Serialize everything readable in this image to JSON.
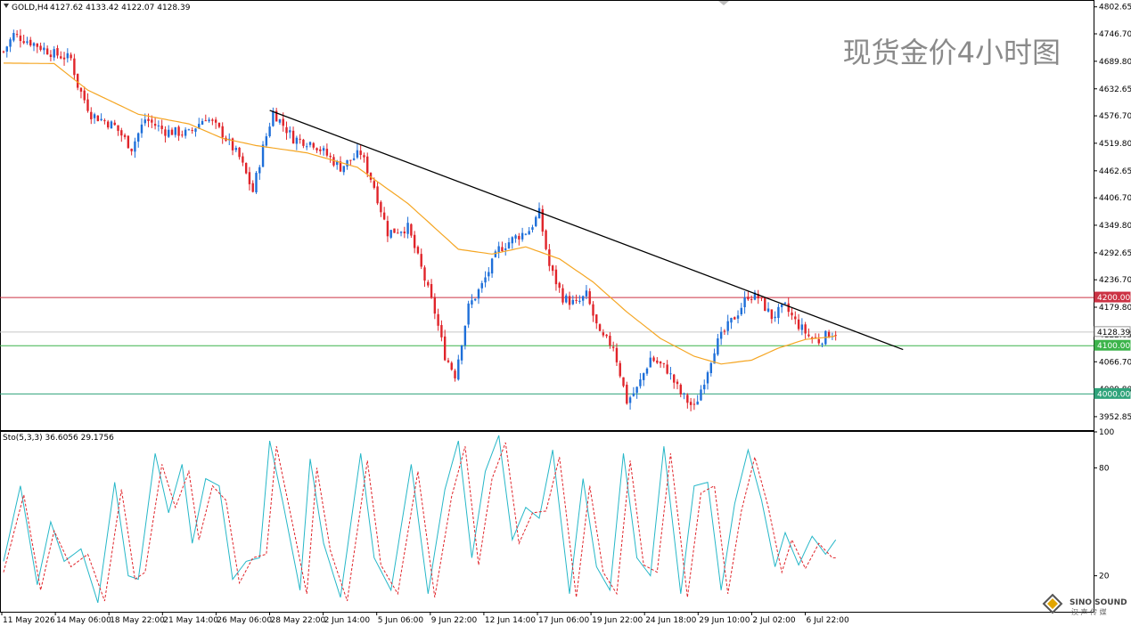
{
  "window": {
    "symbol_header": "GOLD,H4",
    "ohlc_header": "4127.62 4133.42 4122.07 4128.39",
    "watermark": "现货金价4小时图"
  },
  "colors": {
    "bull_candle": "#1e6fd9",
    "bear_candle": "#e0242a",
    "moving_average": "#f5a623",
    "trendline": "#000000",
    "level_4200": "#cc3344",
    "level_current": "#c8c8c8",
    "level_support": "#3cb44b",
    "stoch_main": "#26b7c8",
    "stoch_signal": "#e0242a"
  },
  "logo": {
    "name": "SINO SOUND",
    "icon": "diamond-logo-icon",
    "subtitle": "汉 声 传 媒"
  },
  "chart_data": [
    {
      "type": "candlestick",
      "timeframe": "H4",
      "y_range": [
        3925,
        4815
      ],
      "price_axis_ticks": [
        "4802.65",
        "4746.70",
        "4689.80",
        "4632.65",
        "4576.70",
        "4519.80",
        "4462.65",
        "4406.70",
        "4349.80",
        "4292.65",
        "4236.70",
        "4179.80",
        "4122.65",
        "4066.70",
        "4009.80",
        "3952.85"
      ],
      "x_tick_labels": [
        "11 May 2026",
        "14 May 06:00",
        "18 May 22:00",
        "21 May 14:00",
        "26 May 06:00",
        "28 May 22:00",
        "2 Jun 14:00",
        "5 Jun 06:00",
        "9 Jun 22:00",
        "12 Jun 14:00",
        "17 Jun 06:00",
        "19 Jun 22:00",
        "24 Jun 18:00",
        "29 Jun 10:00",
        "2 Jul 02:00",
        "6 Jul 22:00"
      ],
      "horizontal_levels": [
        {
          "value": 4200.0,
          "label": "4200.00",
          "style": "red-line"
        },
        {
          "value": 4128.39,
          "label": "4128.39",
          "style": "gray-line"
        },
        {
          "value": 4100.0,
          "label": "4100.00",
          "style": "green-line"
        },
        {
          "value": 4000.0,
          "label": "4000.00",
          "style": "teal-line"
        }
      ],
      "trendline": {
        "from": {
          "bar_index": 79,
          "price": 4588
        },
        "to": {
          "bar_index": 267,
          "price": 4092
        }
      },
      "moving_average_key_points": [
        [
          0,
          4686
        ],
        [
          15,
          4685
        ],
        [
          25,
          4630
        ],
        [
          40,
          4580
        ],
        [
          55,
          4560
        ],
        [
          65,
          4530
        ],
        [
          75,
          4515
        ],
        [
          90,
          4500
        ],
        [
          105,
          4470
        ],
        [
          120,
          4395
        ],
        [
          135,
          4300
        ],
        [
          145,
          4290
        ],
        [
          155,
          4305
        ],
        [
          165,
          4280
        ],
        [
          175,
          4232
        ],
        [
          185,
          4170
        ],
        [
          195,
          4115
        ],
        [
          205,
          4078
        ],
        [
          213,
          4062
        ],
        [
          222,
          4070
        ],
        [
          230,
          4095
        ],
        [
          238,
          4113
        ],
        [
          245,
          4118
        ],
        [
          247,
          4120
        ]
      ],
      "close_key_points": [
        [
          0,
          4710
        ],
        [
          3,
          4745
        ],
        [
          8,
          4730
        ],
        [
          15,
          4705
        ],
        [
          20,
          4695
        ],
        [
          22,
          4640
        ],
        [
          26,
          4580
        ],
        [
          33,
          4555
        ],
        [
          38,
          4510
        ],
        [
          42,
          4570
        ],
        [
          48,
          4545
        ],
        [
          55,
          4540
        ],
        [
          60,
          4575
        ],
        [
          65,
          4540
        ],
        [
          70,
          4490
        ],
        [
          74,
          4420
        ],
        [
          77,
          4510
        ],
        [
          80,
          4585
        ],
        [
          86,
          4530
        ],
        [
          92,
          4520
        ],
        [
          100,
          4470
        ],
        [
          106,
          4500
        ],
        [
          110,
          4430
        ],
        [
          114,
          4335
        ],
        [
          120,
          4345
        ],
        [
          124,
          4260
        ],
        [
          128,
          4170
        ],
        [
          131,
          4080
        ],
        [
          134,
          4040
        ],
        [
          138,
          4180
        ],
        [
          142,
          4225
        ],
        [
          147,
          4300
        ],
        [
          152,
          4325
        ],
        [
          156,
          4340
        ],
        [
          159,
          4375
        ],
        [
          162,
          4265
        ],
        [
          166,
          4200
        ],
        [
          170,
          4185
        ],
        [
          173,
          4205
        ],
        [
          177,
          4120
        ],
        [
          181,
          4100
        ],
        [
          185,
          3985
        ],
        [
          188,
          4010
        ],
        [
          192,
          4075
        ],
        [
          197,
          4050
        ],
        [
          201,
          4000
        ],
        [
          205,
          3970
        ],
        [
          208,
          4030
        ],
        [
          211,
          4095
        ],
        [
          214,
          4130
        ],
        [
          218,
          4170
        ],
        [
          221,
          4205
        ],
        [
          224,
          4200
        ],
        [
          228,
          4160
        ],
        [
          232,
          4180
        ],
        [
          235,
          4150
        ],
        [
          239,
          4120
        ],
        [
          242,
          4110
        ],
        [
          245,
          4125
        ],
        [
          247,
          4128
        ]
      ]
    },
    {
      "type": "line",
      "indicator": "Stochastic",
      "label": "Sto(5,3,3) 36.6056 29.1756",
      "y_range": [
        0,
        100
      ],
      "y_ticks": [
        "100",
        "80",
        "20"
      ],
      "series": [
        {
          "role": "main",
          "style": "solid"
        },
        {
          "role": "signal",
          "style": "dashed"
        }
      ],
      "main_key_points": [
        [
          0,
          28
        ],
        [
          5,
          70
        ],
        [
          10,
          15
        ],
        [
          14,
          50
        ],
        [
          18,
          28
        ],
        [
          23,
          35
        ],
        [
          28,
          5
        ],
        [
          33,
          72
        ],
        [
          37,
          20
        ],
        [
          40,
          18
        ],
        [
          45,
          88
        ],
        [
          49,
          55
        ],
        [
          53,
          82
        ],
        [
          56,
          38
        ],
        [
          60,
          74
        ],
        [
          64,
          70
        ],
        [
          68,
          18
        ],
        [
          72,
          28
        ],
        [
          76,
          30
        ],
        [
          79,
          95
        ],
        [
          83,
          60
        ],
        [
          88,
          12
        ],
        [
          91,
          85
        ],
        [
          95,
          38
        ],
        [
          100,
          8
        ],
        [
          106,
          88
        ],
        [
          110,
          30
        ],
        [
          115,
          12
        ],
        [
          121,
          82
        ],
        [
          126,
          10
        ],
        [
          131,
          68
        ],
        [
          135,
          95
        ],
        [
          139,
          30
        ],
        [
          143,
          78
        ],
        [
          147,
          98
        ],
        [
          151,
          40
        ],
        [
          155,
          58
        ],
        [
          159,
          52
        ],
        [
          163,
          90
        ],
        [
          168,
          10
        ],
        [
          172,
          74
        ],
        [
          176,
          25
        ],
        [
          180,
          12
        ],
        [
          184,
          88
        ],
        [
          188,
          30
        ],
        [
          192,
          20
        ],
        [
          196,
          92
        ],
        [
          201,
          10
        ],
        [
          205,
          70
        ],
        [
          209,
          72
        ],
        [
          213,
          12
        ],
        [
          217,
          60
        ],
        [
          221,
          90
        ],
        [
          225,
          62
        ],
        [
          229,
          25
        ],
        [
          232,
          44
        ],
        [
          236,
          26
        ],
        [
          240,
          42
        ],
        [
          244,
          32
        ],
        [
          247,
          40
        ]
      ],
      "signal_key_points": [
        [
          0,
          22
        ],
        [
          6,
          65
        ],
        [
          11,
          12
        ],
        [
          15,
          45
        ],
        [
          20,
          25
        ],
        [
          25,
          32
        ],
        [
          30,
          6
        ],
        [
          35,
          68
        ],
        [
          39,
          18
        ],
        [
          42,
          22
        ],
        [
          47,
          82
        ],
        [
          51,
          58
        ],
        [
          55,
          78
        ],
        [
          58,
          40
        ],
        [
          62,
          70
        ],
        [
          66,
          62
        ],
        [
          70,
          16
        ],
        [
          74,
          30
        ],
        [
          78,
          32
        ],
        [
          81,
          92
        ],
        [
          85,
          56
        ],
        [
          90,
          10
        ],
        [
          93,
          80
        ],
        [
          97,
          34
        ],
        [
          102,
          6
        ],
        [
          108,
          84
        ],
        [
          112,
          26
        ],
        [
          117,
          10
        ],
        [
          123,
          78
        ],
        [
          128,
          8
        ],
        [
          133,
          64
        ],
        [
          137,
          92
        ],
        [
          141,
          26
        ],
        [
          145,
          74
        ],
        [
          149,
          94
        ],
        [
          153,
          38
        ],
        [
          157,
          55
        ],
        [
          161,
          56
        ],
        [
          165,
          86
        ],
        [
          170,
          8
        ],
        [
          174,
          70
        ],
        [
          178,
          22
        ],
        [
          182,
          10
        ],
        [
          186,
          84
        ],
        [
          190,
          26
        ],
        [
          194,
          22
        ],
        [
          198,
          88
        ],
        [
          203,
          8
        ],
        [
          207,
          66
        ],
        [
          211,
          70
        ],
        [
          215,
          10
        ],
        [
          219,
          56
        ],
        [
          223,
          86
        ],
        [
          227,
          58
        ],
        [
          231,
          22
        ],
        [
          234,
          40
        ],
        [
          238,
          24
        ],
        [
          242,
          38
        ],
        [
          246,
          30
        ]
      ]
    }
  ]
}
